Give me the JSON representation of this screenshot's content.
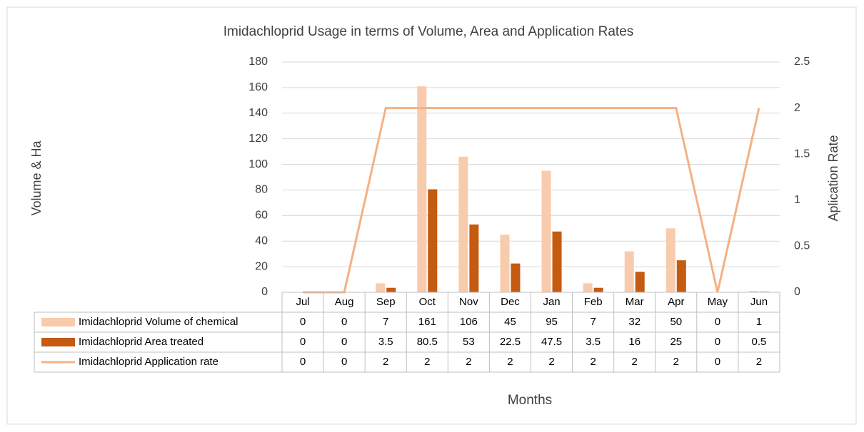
{
  "chart_data": {
    "type": "bar_line",
    "title": "Imidachloprid Usage in terms of Volume, Area and Application Rates",
    "y_label": "Volume & Ha",
    "y2_label": "Aplication Rate",
    "x_label": "Months",
    "categories": [
      "Jul",
      "Aug",
      "Sep",
      "Oct",
      "Nov",
      "Dec",
      "Jan",
      "Feb",
      "Mar",
      "Apr",
      "May",
      "Jun"
    ],
    "series": [
      {
        "name": "Imidachloprid Volume of chemical",
        "type": "bar",
        "color": "#f8cbad",
        "values": [
          0,
          0,
          7,
          161,
          106,
          45,
          95,
          7,
          32,
          50,
          0,
          1
        ]
      },
      {
        "name": "Imidachloprid Area treated",
        "type": "bar",
        "color": "#c55a11",
        "values": [
          0,
          0,
          3.5,
          80.5,
          53,
          22.5,
          47.5,
          3.5,
          16,
          25,
          0,
          0.5
        ]
      },
      {
        "name": "Imidachloprid Application rate",
        "type": "line",
        "axis": "y2",
        "color": "#f4b183",
        "values": [
          0,
          0,
          2,
          2,
          2,
          2,
          2,
          2,
          2,
          2,
          0,
          2
        ]
      }
    ],
    "ylim": [
      0,
      180
    ],
    "yticks": [
      0,
      20,
      40,
      60,
      80,
      100,
      120,
      140,
      160,
      180
    ],
    "y2lim": [
      0,
      2.5
    ],
    "y2ticks": [
      0,
      0.5,
      1,
      1.5,
      2,
      2.5
    ],
    "grid": true,
    "data_table": true
  }
}
